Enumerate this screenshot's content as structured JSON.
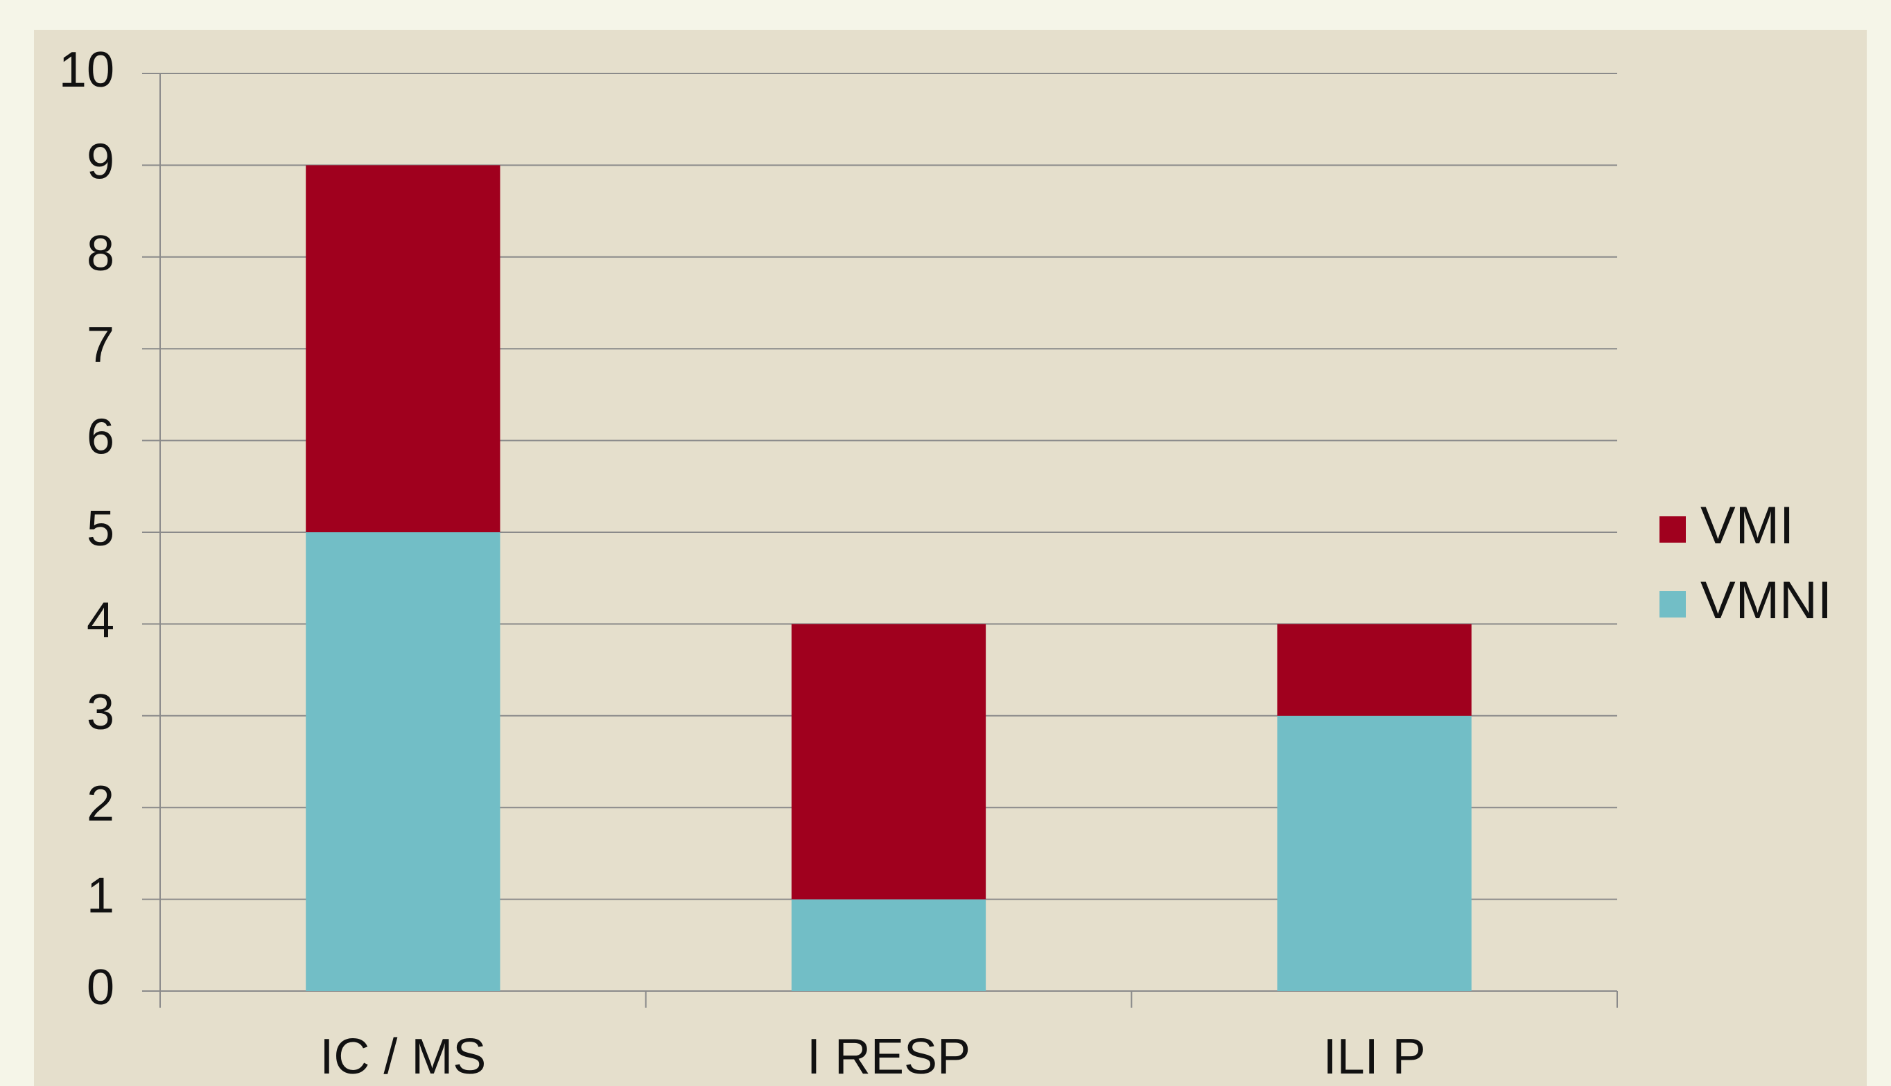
{
  "chart_data": {
    "type": "stacked_bar",
    "categories": [
      "IC / MS",
      "I RESP",
      "ILI P"
    ],
    "series": [
      {
        "name": "VMNI",
        "color": "#72bec6",
        "values": [
          5,
          1,
          3
        ]
      },
      {
        "name": "VMI",
        "color": "#a0001e",
        "values": [
          4,
          3,
          1
        ]
      }
    ],
    "ylim": [
      0,
      10
    ],
    "yticks": [
      0,
      1,
      2,
      3,
      4,
      5,
      6,
      7,
      8,
      9,
      10
    ],
    "grid": true,
    "legend": "right"
  }
}
